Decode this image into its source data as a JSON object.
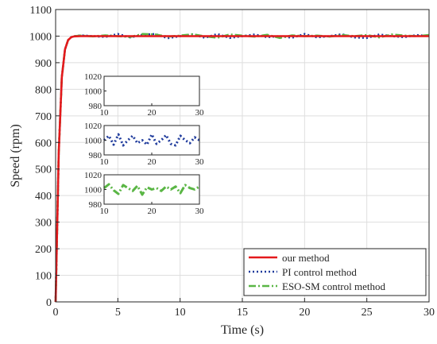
{
  "chart_data": {
    "type": "line",
    "xlabel": "Time (s)",
    "ylabel": "Speed (rpm)",
    "xlim": [
      0,
      30
    ],
    "ylim": [
      0,
      1100
    ],
    "xticks": [
      0,
      5,
      10,
      15,
      20,
      25,
      30
    ],
    "yticks": [
      0,
      100,
      200,
      300,
      400,
      500,
      600,
      700,
      800,
      900,
      1000,
      1100
    ],
    "grid": true,
    "legend_position": "bottom-right",
    "series": [
      {
        "name": "our method",
        "color": "#e4191c",
        "style": "solid",
        "x": [
          0,
          0.25,
          0.5,
          0.75,
          1.0,
          1.25,
          1.5,
          2,
          30
        ],
        "y": [
          0,
          560,
          845,
          950,
          985,
          996,
          999,
          1000,
          1000
        ]
      },
      {
        "name": "PI control method",
        "color": "#1f3b9c",
        "style": "dotted",
        "x": [
          0,
          0.25,
          0.5,
          0.75,
          1.0,
          1.25,
          1.5,
          2,
          3,
          4,
          5,
          6,
          7,
          8,
          9,
          10,
          11,
          12,
          13,
          14,
          15,
          16,
          17,
          18,
          19,
          20,
          21,
          22,
          23,
          24,
          25,
          26,
          27,
          28,
          29,
          30
        ],
        "y": [
          0,
          560,
          845,
          950,
          985,
          996,
          1000,
          1003,
          1000,
          997,
          1008,
          995,
          1005,
          1008,
          992,
          1000,
          1006,
          994,
          1008,
          993,
          1000,
          1006,
          996,
          1000,
          994,
          1008,
          995,
          1000,
          1007,
          995,
          993,
          1006,
          1000,
          996,
          1004,
          1000
        ]
      },
      {
        "name": "ESO-SM control method",
        "color": "#5ab645",
        "style": "dashdot",
        "x": [
          0,
          0.25,
          0.5,
          0.75,
          1.0,
          1.25,
          1.5,
          2,
          3,
          4,
          5,
          6,
          7,
          8,
          9,
          10,
          11,
          12,
          13,
          14,
          15,
          16,
          17,
          18,
          19,
          20,
          21,
          22,
          23,
          24,
          25,
          26,
          27,
          28,
          29,
          30
        ],
        "y": [
          0,
          560,
          845,
          950,
          985,
          996,
          1000,
          1002,
          999,
          1003,
          1000,
          997,
          1008,
          1006,
          998,
          1002,
          1007,
          999,
          994,
          1006,
          1002,
          998,
          1005,
          993,
          1003,
          1000,
          1002,
          998,
          1004,
          1000,
          1004,
          995,
          1006,
          1002,
          1000,
          1004
        ]
      }
    ],
    "insets": [
      {
        "series": "our method",
        "xlim": [
          10,
          30
        ],
        "ylim": [
          980,
          1020
        ],
        "xticks": [
          10,
          20,
          30
        ],
        "yticks": [
          980,
          1000,
          1020
        ]
      },
      {
        "series": "PI control method",
        "xlim": [
          10,
          30
        ],
        "ylim": [
          980,
          1020
        ],
        "xticks": [
          10,
          20,
          30
        ],
        "yticks": [
          980,
          1000,
          1020
        ]
      },
      {
        "series": "ESO-SM control method",
        "xlim": [
          10,
          30
        ],
        "ylim": [
          980,
          1020
        ],
        "xticks": [
          10,
          20,
          30
        ],
        "yticks": [
          980,
          1000,
          1020
        ]
      }
    ]
  }
}
